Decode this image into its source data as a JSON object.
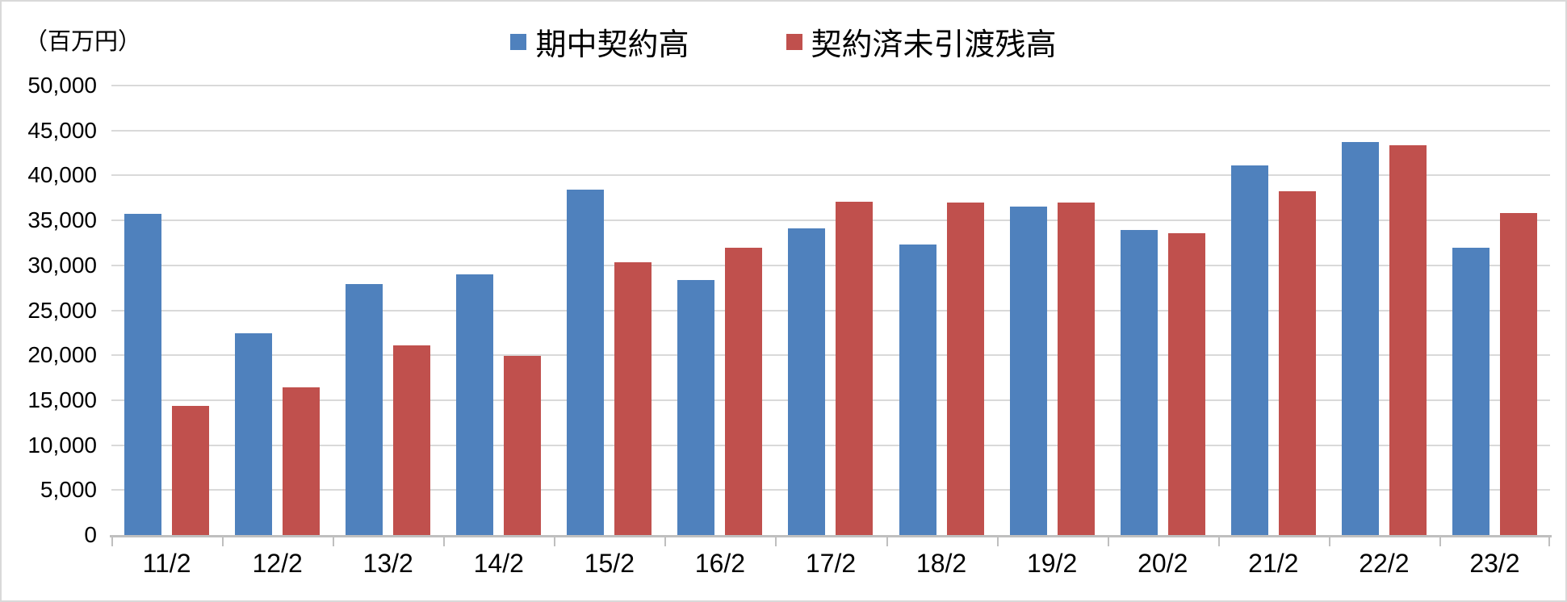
{
  "chart": {
    "unit_label": "（百万円）"
  },
  "chart_data": {
    "type": "bar",
    "title": "",
    "unit_label": "（百万円）",
    "categories": [
      "11/2",
      "12/2",
      "13/2",
      "14/2",
      "15/2",
      "16/2",
      "17/2",
      "18/2",
      "19/2",
      "20/2",
      "21/2",
      "22/2",
      "23/2"
    ],
    "series": [
      {
        "name": "期中契約高",
        "color": "#4F81BD",
        "values": [
          35700,
          22400,
          27900,
          29000,
          38400,
          28400,
          34100,
          32300,
          36500,
          33900,
          41100,
          43700,
          32000
        ]
      },
      {
        "name": "契約済未引渡残高",
        "color": "#C0504D",
        "values": [
          14400,
          16400,
          21100,
          19900,
          30300,
          32000,
          37100,
          37000,
          37000,
          33600,
          38200,
          43400,
          35800
        ]
      }
    ],
    "ylim": [
      0,
      50000
    ],
    "y_tick_step": 5000,
    "y_tick_labels": [
      "0",
      "5,000",
      "10,000",
      "15,000",
      "20,000",
      "25,000",
      "30,000",
      "35,000",
      "40,000",
      "45,000",
      "50,000"
    ],
    "grid": true,
    "legend_position": "top-center",
    "gridline_color": "#D9D9D9",
    "axis_color": "#BFBFBF"
  }
}
